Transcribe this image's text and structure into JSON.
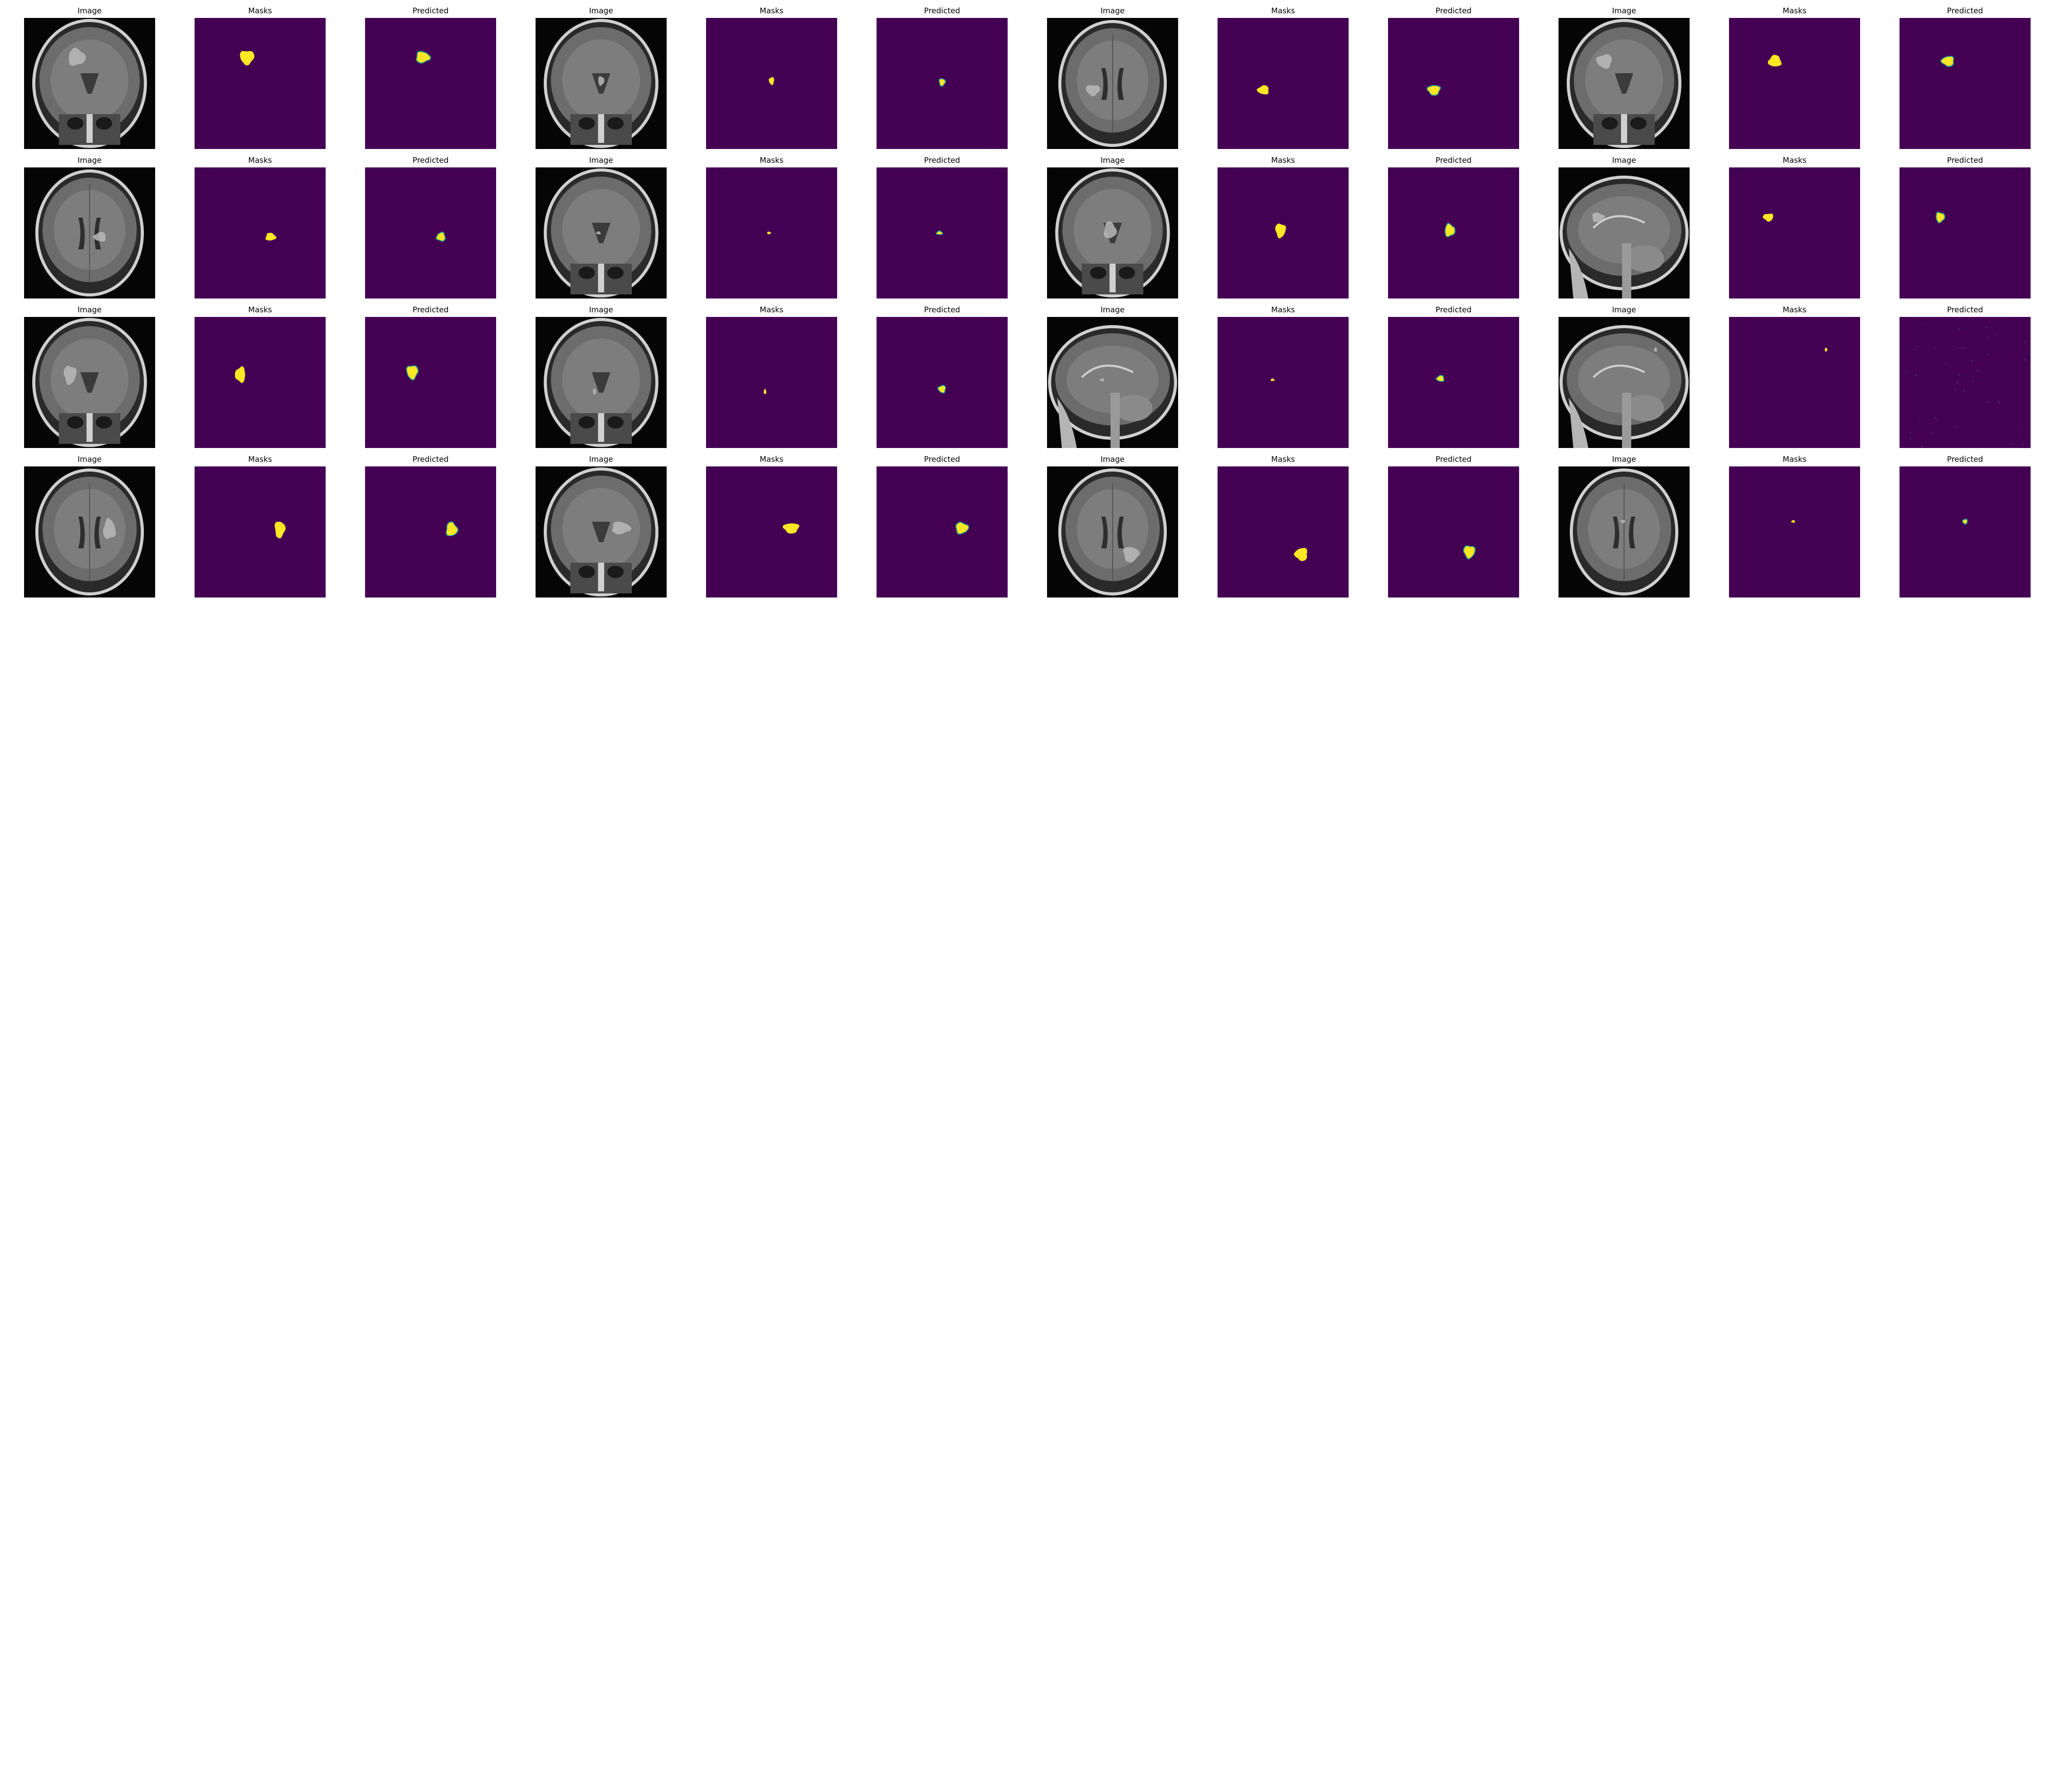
{
  "figure": {
    "panel_titles": [
      "Image",
      "Masks",
      "Predicted"
    ],
    "colors": {
      "background": "#ffffff",
      "mask_background": "#440154",
      "mask_foreground": "#fde725",
      "mask_edge": "#21918c",
      "title_text": "#000000"
    },
    "samples": [
      {
        "view": "coronal",
        "lesion": [
          0.4,
          0.3,
          0.11,
          0.11
        ],
        "pred": [
          0.44,
          0.3,
          0.1,
          0.08
        ]
      },
      {
        "view": "coronal",
        "lesion": [
          0.5,
          0.48,
          0.04,
          0.06
        ],
        "pred": [
          0.5,
          0.49,
          0.04,
          0.05
        ]
      },
      {
        "view": "axial",
        "lesion": [
          0.35,
          0.55,
          0.09,
          0.07
        ],
        "pred": [
          0.35,
          0.55,
          0.09,
          0.07
        ]
      },
      {
        "view": "coronal",
        "lesion": [
          0.35,
          0.33,
          0.1,
          0.09
        ],
        "pred": [
          0.37,
          0.33,
          0.09,
          0.07
        ]
      },
      {
        "view": "axial",
        "lesion": [
          0.58,
          0.53,
          0.08,
          0.06
        ],
        "pred": [
          0.58,
          0.53,
          0.06,
          0.06
        ]
      },
      {
        "view": "coronal",
        "lesion": [
          0.48,
          0.5,
          0.03,
          0.02
        ],
        "pred": [
          0.48,
          0.5,
          0.04,
          0.02
        ]
      },
      {
        "view": "coronal",
        "lesion": [
          0.48,
          0.48,
          0.08,
          0.11
        ],
        "pred": [
          0.47,
          0.48,
          0.07,
          0.09
        ]
      },
      {
        "view": "sagittal",
        "lesion": [
          0.3,
          0.38,
          0.08,
          0.06
        ],
        "pred": [
          0.31,
          0.38,
          0.06,
          0.07
        ]
      },
      {
        "view": "coronal",
        "lesion": [
          0.35,
          0.44,
          0.08,
          0.12
        ],
        "pred": [
          0.36,
          0.42,
          0.08,
          0.1
        ]
      },
      {
        "view": "coronal",
        "lesion": [
          0.45,
          0.57,
          0.02,
          0.04
        ],
        "pred": [
          0.5,
          0.55,
          0.05,
          0.05
        ]
      },
      {
        "view": "sagittal",
        "lesion": [
          0.42,
          0.48,
          0.03,
          0.02
        ],
        "pred": [
          0.4,
          0.47,
          0.05,
          0.04
        ]
      },
      {
        "view": "sagittal",
        "lesion": [
          0.74,
          0.25,
          0.02,
          0.03
        ],
        "pred": [
          0.4,
          0.5,
          0.0,
          0.0
        ]
      },
      {
        "view": "axial",
        "lesion": [
          0.65,
          0.48,
          0.08,
          0.13
        ],
        "pred": [
          0.66,
          0.48,
          0.08,
          0.1
        ]
      },
      {
        "view": "coronal",
        "lesion": [
          0.65,
          0.47,
          0.12,
          0.08
        ],
        "pred": [
          0.65,
          0.47,
          0.09,
          0.08
        ]
      },
      {
        "view": "axial",
        "lesion": [
          0.64,
          0.67,
          0.1,
          0.1
        ],
        "pred": [
          0.62,
          0.65,
          0.08,
          0.09
        ]
      },
      {
        "view": "axial",
        "lesion": [
          0.49,
          0.42,
          0.03,
          0.02
        ],
        "pred": [
          0.5,
          0.42,
          0.03,
          0.03
        ]
      }
    ]
  }
}
